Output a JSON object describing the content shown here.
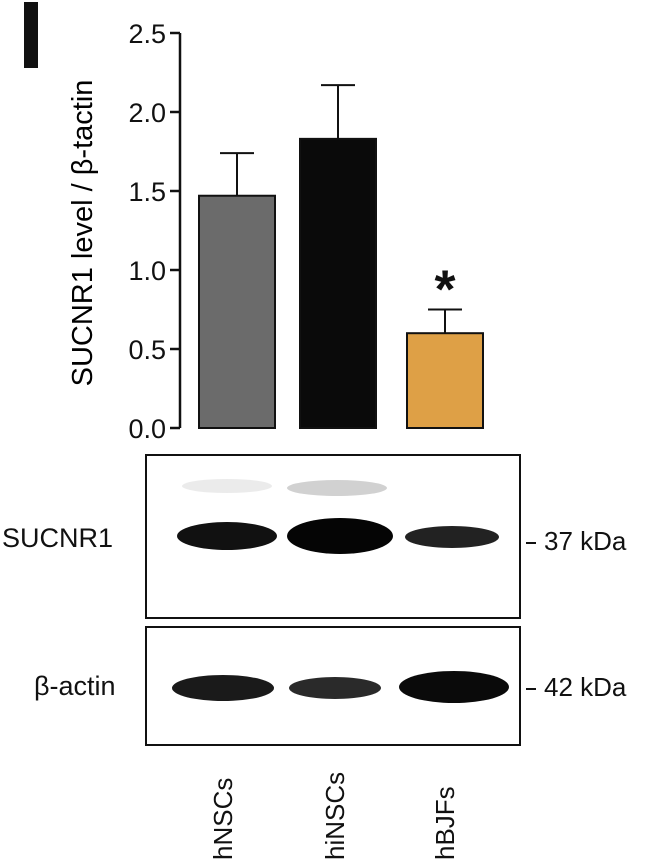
{
  "panel_label": "",
  "chart_data": {
    "type": "bar",
    "categories": [
      "hNSCs",
      "hiNSCs",
      "hBJFs"
    ],
    "values": [
      1.47,
      1.83,
      0.6
    ],
    "errors": [
      0.27,
      0.34,
      0.15
    ],
    "bar_colors": [
      "#6b6b6b",
      "#0a0a0a",
      "#dea046"
    ],
    "significance": [
      "",
      "",
      "*"
    ],
    "title": "",
    "xlabel": "",
    "ylabel": "SUCNR1 level / β-tactin",
    "ylim": [
      0,
      2.5
    ],
    "yticks": [
      "0.0",
      "0.5",
      "1.0",
      "1.5",
      "2.0",
      "2.5"
    ],
    "grid": false
  },
  "blot": {
    "top_label": "SUCNR1",
    "top_marker": "37 kDa",
    "top_band_intensity": [
      0.9,
      1.0,
      0.75
    ],
    "bottom_label": "β-actin",
    "bottom_marker": "42 kDa",
    "bottom_band_intensity": [
      0.85,
      0.7,
      0.95
    ],
    "lanes": [
      "hNSCs",
      "hiNSCs",
      "hBJFs"
    ]
  }
}
